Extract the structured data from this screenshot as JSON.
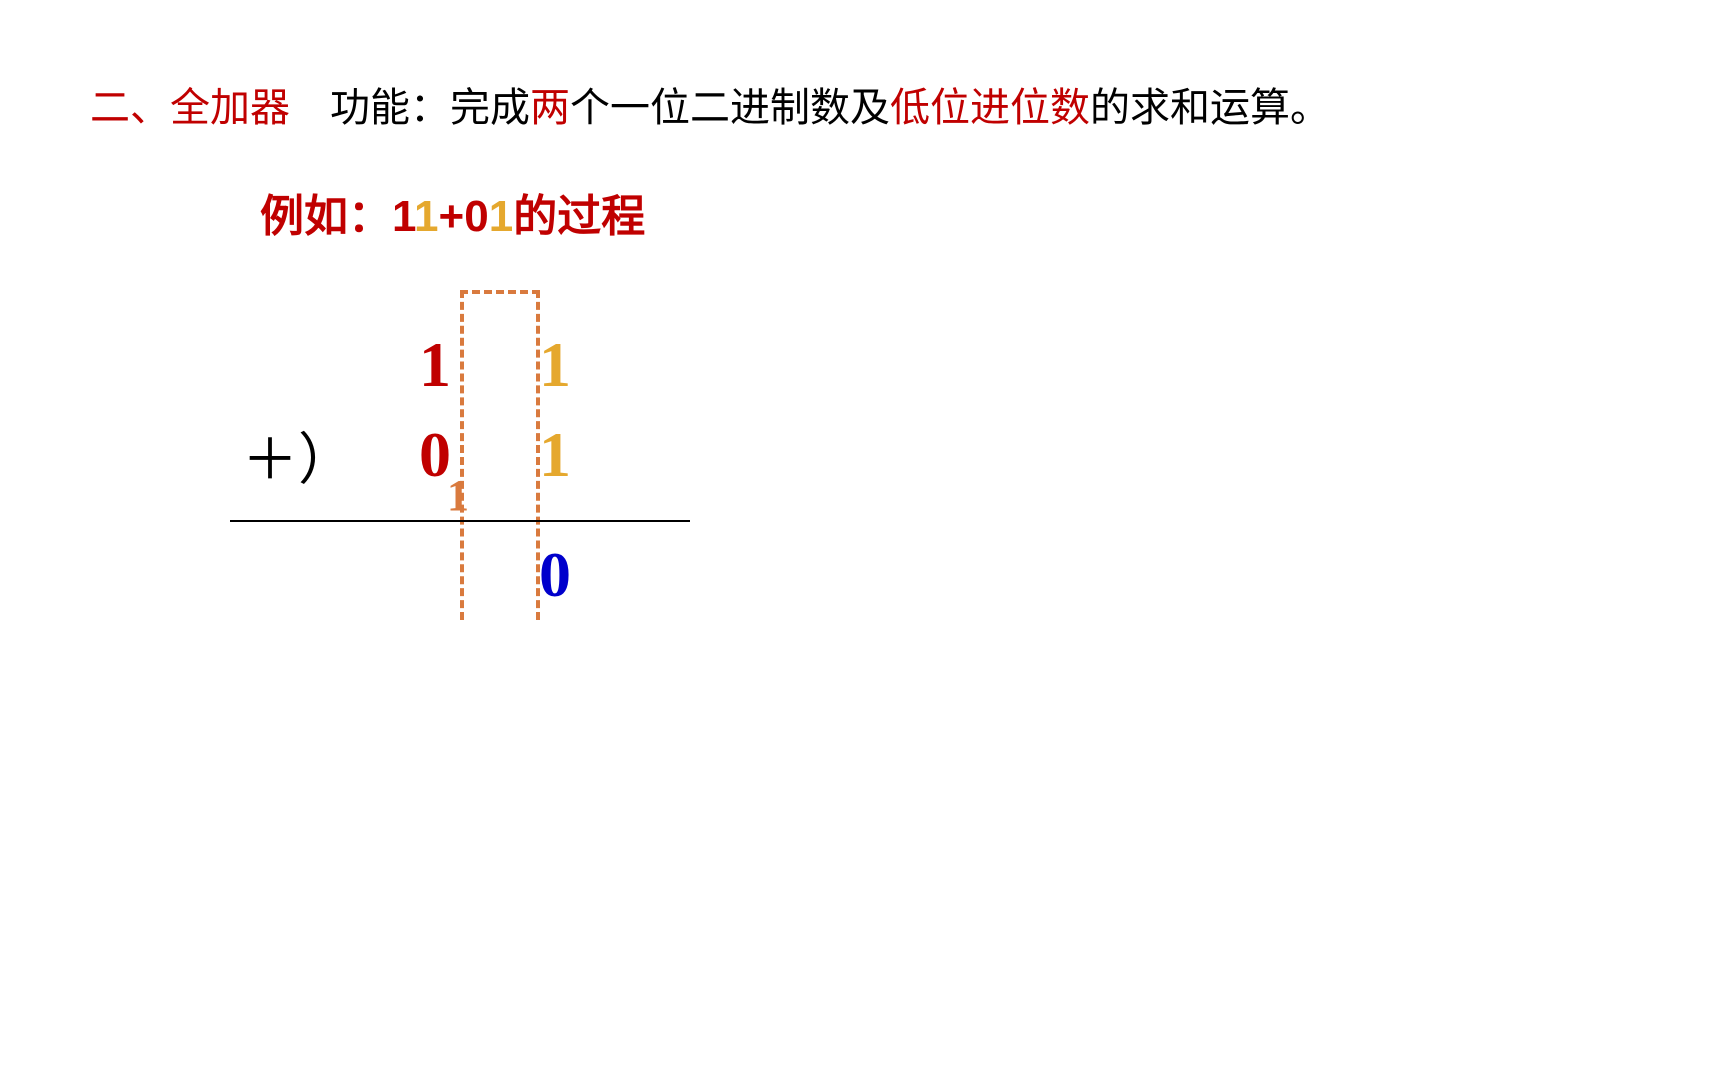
{
  "colors": {
    "red": "#c00000",
    "orange": "#e5a82e",
    "dark_orange": "#d97a3e",
    "blue": "#0000cc",
    "black": "#000000"
  },
  "header": {
    "section_title": "二、全加器",
    "section_title_color": "#c00000",
    "function_prefix": "功能：完成",
    "function_highlight1": "两",
    "function_mid": "个一位二进制数及",
    "function_highlight2": "低位进位数",
    "function_suffix": "的求和运算。"
  },
  "example": {
    "prefix": "例如：",
    "n1_d1": "1",
    "n1_d2": "1",
    "plus": "+",
    "n2_d1": "0",
    "n2_d2": "1",
    "suffix": "的过程"
  },
  "arithmetic": {
    "row1_high": "1",
    "row1_low": "1",
    "plus": "＋）",
    "row2_high": "0",
    "row2_low": "1",
    "carry": "1",
    "result_low": "0"
  },
  "styling": {
    "row1_high_color": "#c00000",
    "row1_low_color": "#e5a82e",
    "row2_high_color": "#c00000",
    "row2_low_color": "#e5a82e",
    "carry_color": "#d97a3e",
    "result_low_color": "#0000cc",
    "plus_color": "#000000",
    "digit_fontsize": 64,
    "example_fontsize": 44,
    "header_fontsize": 40
  }
}
